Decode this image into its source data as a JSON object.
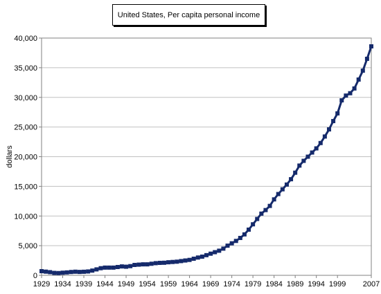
{
  "chart_data": {
    "type": "line",
    "title": "United States, Per capita personal income",
    "ylabel": "dollars",
    "xlabel": "",
    "xlim": [
      1929,
      2007
    ],
    "ylim": [
      0,
      40000
    ],
    "grid": true,
    "legend": "none",
    "x_tick_labels": [
      "1929",
      "1934",
      "1939",
      "1944",
      "1949",
      "1954",
      "1959",
      "1964",
      "1969",
      "1974",
      "1979",
      "1984",
      "1989",
      "1994",
      "1999",
      "2007"
    ],
    "y_tick_labels": [
      "0",
      "5,000",
      "10,000",
      "15,000",
      "20,000",
      "25,000",
      "30,000",
      "35,000",
      "40,000"
    ],
    "y_ticks": [
      0,
      5000,
      10000,
      15000,
      20000,
      25000,
      30000,
      35000,
      40000
    ],
    "x_ticks": [
      1929,
      1934,
      1939,
      1944,
      1949,
      1954,
      1959,
      1964,
      1969,
      1974,
      1979,
      1984,
      1989,
      1994,
      1999,
      2007
    ],
    "series": [
      {
        "color": "#152a6b",
        "x": [
          1929,
          1930,
          1931,
          1932,
          1933,
          1934,
          1935,
          1936,
          1937,
          1938,
          1939,
          1940,
          1941,
          1942,
          1943,
          1944,
          1945,
          1946,
          1947,
          1948,
          1949,
          1950,
          1951,
          1952,
          1953,
          1954,
          1955,
          1956,
          1957,
          1958,
          1959,
          1960,
          1961,
          1962,
          1963,
          1964,
          1965,
          1966,
          1967,
          1968,
          1969,
          1970,
          1971,
          1972,
          1973,
          1974,
          1975,
          1976,
          1977,
          1978,
          1979,
          1980,
          1981,
          1982,
          1983,
          1984,
          1985,
          1986,
          1987,
          1988,
          1989,
          1990,
          1991,
          1992,
          1993,
          1994,
          1995,
          1996,
          1997,
          1998,
          1999,
          2000,
          2001,
          2002,
          2003,
          2004,
          2005,
          2006,
          2007
        ],
        "values": [
          700,
          620,
          530,
          410,
          380,
          440,
          490,
          560,
          610,
          570,
          600,
          650,
          800,
          1000,
          1200,
          1300,
          1300,
          1300,
          1400,
          1500,
          1450,
          1550,
          1750,
          1800,
          1850,
          1850,
          1950,
          2050,
          2100,
          2120,
          2200,
          2250,
          2300,
          2400,
          2500,
          2600,
          2800,
          3000,
          3150,
          3400,
          3650,
          3900,
          4150,
          4500,
          5000,
          5400,
          5800,
          6300,
          6900,
          7700,
          8600,
          9500,
          10400,
          11000,
          11700,
          12800,
          13700,
          14500,
          15300,
          16200,
          17300,
          18500,
          19300,
          20000,
          20700,
          21400,
          22300,
          23400,
          24600,
          26000,
          27300,
          29500,
          30300,
          30700,
          31500,
          33000,
          34500,
          36500,
          38600
        ]
      }
    ]
  }
}
